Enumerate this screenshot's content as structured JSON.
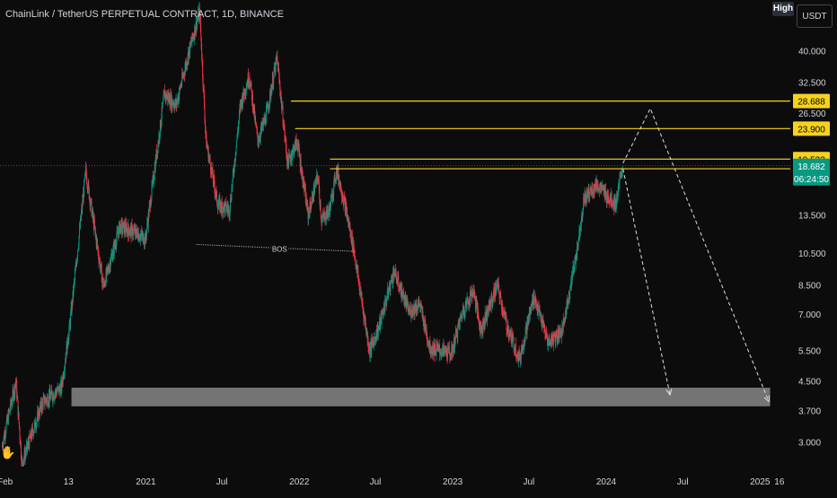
{
  "header": {
    "title": "ChainLink / TetherUS PERPETUAL CONTRACT, 1D, BINANCE",
    "high_button": "High",
    "currency_button": "USDT"
  },
  "chart_data": {
    "type": "candlestick",
    "title": "ChainLink / TetherUS PERPETUAL CONTRACT, 1D, BINANCE",
    "y_scale": "log",
    "ylim": [
      2.55,
      56
    ],
    "y_ticks": [
      40.0,
      32.5,
      26.5,
      13.5,
      10.5,
      8.5,
      7.0,
      5.5,
      4.5,
      3.7,
      3.0
    ],
    "y_tick_labels": [
      "40.000",
      "32.500",
      "26.500",
      "13.500",
      "10.500",
      "8.500",
      "7.000",
      "5.500",
      "4.500",
      "3.700",
      "3.000"
    ],
    "xlim": [
      "2020-01-20",
      "2025-03-14"
    ],
    "x_ticks": [
      {
        "date": "2020-02-01",
        "label": "Feb"
      },
      {
        "date": "2020-07-01",
        "label": "13"
      },
      {
        "date": "2021-01-01",
        "label": "2021"
      },
      {
        "date": "2021-07-01",
        "label": "Jul"
      },
      {
        "date": "2022-01-01",
        "label": "2022"
      },
      {
        "date": "2022-07-01",
        "label": "Jul"
      },
      {
        "date": "2023-01-01",
        "label": "2023"
      },
      {
        "date": "2023-07-01",
        "label": "Jul"
      },
      {
        "date": "2024-01-01",
        "label": "2024"
      },
      {
        "date": "2024-07-01",
        "label": "Jul"
      },
      {
        "date": "2025-01-01",
        "label": "2025"
      },
      {
        "date": "2025-02-16",
        "label": "16"
      }
    ],
    "price_path": [
      [
        "2020-01-25",
        2.9
      ],
      [
        "2020-02-28",
        4.5
      ],
      [
        "2020-03-13",
        2.6
      ],
      [
        "2020-05-01",
        3.9
      ],
      [
        "2020-06-15",
        4.3
      ],
      [
        "2020-07-05",
        6.5
      ],
      [
        "2020-08-12",
        18.0
      ],
      [
        "2020-09-23",
        8.4
      ],
      [
        "2020-11-01",
        12.5
      ],
      [
        "2020-12-10",
        12.0
      ],
      [
        "2021-01-01",
        11.5
      ],
      [
        "2021-02-15",
        30.0
      ],
      [
        "2021-03-15",
        28.0
      ],
      [
        "2021-04-15",
        40.0
      ],
      [
        "2021-05-10",
        52.0
      ],
      [
        "2021-05-25",
        22.0
      ],
      [
        "2021-06-22",
        14.5
      ],
      [
        "2021-07-20",
        14.0
      ],
      [
        "2021-08-15",
        28.0
      ],
      [
        "2021-09-05",
        34.0
      ],
      [
        "2021-09-25",
        22.0
      ],
      [
        "2021-10-15",
        26.0
      ],
      [
        "2021-11-10",
        38.0
      ],
      [
        "2021-12-05",
        19.0
      ],
      [
        "2021-12-28",
        22.0
      ],
      [
        "2022-01-23",
        13.5
      ],
      [
        "2022-02-15",
        17.5
      ],
      [
        "2022-02-24",
        13.0
      ],
      [
        "2022-03-15",
        14.0
      ],
      [
        "2022-04-01",
        18.3
      ],
      [
        "2022-04-20",
        14.5
      ],
      [
        "2022-05-10",
        11.0
      ],
      [
        "2022-06-18",
        5.5
      ],
      [
        "2022-07-10",
        6.4
      ],
      [
        "2022-08-15",
        9.3
      ],
      [
        "2022-09-20",
        7.1
      ],
      [
        "2022-10-15",
        7.5
      ],
      [
        "2022-11-09",
        5.6
      ],
      [
        "2022-12-30",
        5.4
      ],
      [
        "2023-01-25",
        7.1
      ],
      [
        "2023-02-20",
        8.2
      ],
      [
        "2023-03-10",
        6.3
      ],
      [
        "2023-04-18",
        8.5
      ],
      [
        "2023-05-10",
        6.5
      ],
      [
        "2023-06-10",
        5.2
      ],
      [
        "2023-06-20",
        5.9
      ],
      [
        "2023-07-14",
        7.9
      ],
      [
        "2023-08-17",
        5.8
      ],
      [
        "2023-09-20",
        6.3
      ],
      [
        "2023-10-25",
        10.8
      ],
      [
        "2023-11-10",
        15.0
      ],
      [
        "2023-12-10",
        16.5
      ],
      [
        "2024-01-01",
        15.5
      ],
      [
        "2024-01-25",
        14.5
      ],
      [
        "2024-02-10",
        18.6
      ]
    ],
    "horizontal_levels": [
      {
        "price": 28.688,
        "label": "28.688",
        "color": "#f7d21c"
      },
      {
        "price": 23.9,
        "label": "23.900",
        "color": "#f7d21c"
      },
      {
        "price": 19.533,
        "label": "19.533",
        "color": "#f7d21c"
      },
      {
        "price": 18.324,
        "label": "18.324",
        "color": "#f7d21c"
      }
    ],
    "current_price": {
      "price": 18.682,
      "label": "18.682",
      "countdown": "06:24:50",
      "color": "#089981"
    },
    "bos": {
      "label": "BOS",
      "start": [
        "2021-05-01",
        11.1
      ],
      "end": [
        "2022-05-15",
        10.6
      ]
    },
    "demand_zone": {
      "from": "2020-07-08",
      "to": "2025-01-25",
      "low": 3.8,
      "high": 4.3,
      "color": "#878787"
    },
    "projection_1": [
      [
        "2024-02-10",
        18.3
      ],
      [
        "2024-06-01",
        4.1
      ]
    ],
    "projection_2": [
      [
        "2024-02-10",
        19.0
      ],
      [
        "2024-04-15",
        27.3
      ],
      [
        "2025-01-22",
        3.92
      ]
    ],
    "colors": {
      "up": "#089981",
      "down": "#f23645",
      "background": "#0c0c0c",
      "axis_text": "#d1d4dc"
    }
  }
}
